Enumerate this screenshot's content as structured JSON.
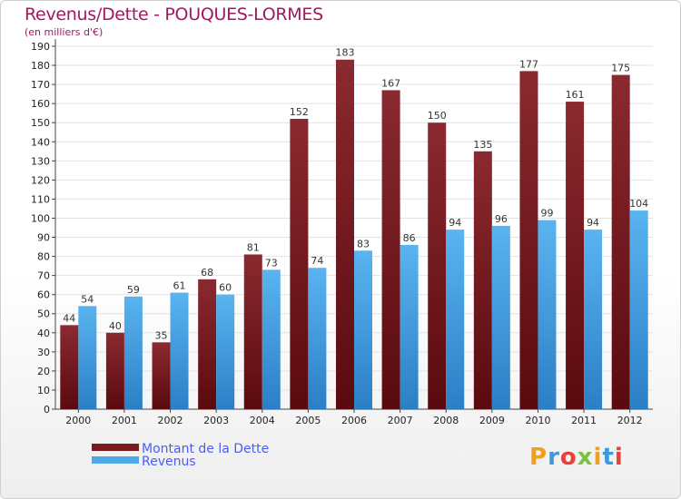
{
  "chart_data": {
    "type": "bar",
    "title": "Revenus/Dette - POUQUES-LORMES",
    "subtitle": "(en milliers d'€)",
    "categories": [
      "2000",
      "2001",
      "2002",
      "2003",
      "2004",
      "2005",
      "2006",
      "2007",
      "2008",
      "2009",
      "2010",
      "2011",
      "2012"
    ],
    "series": [
      {
        "name": "Montant de la Dette",
        "values": [
          44,
          40,
          35,
          68,
          81,
          152,
          183,
          167,
          150,
          135,
          177,
          161,
          175
        ],
        "color": "#7a1a1e"
      },
      {
        "name": "Revenus",
        "values": [
          54,
          59,
          61,
          60,
          73,
          74,
          83,
          86,
          94,
          96,
          99,
          94,
          104
        ],
        "color": "#4ea7e6"
      }
    ],
    "ylim": [
      0,
      190
    ],
    "yticks": [
      0,
      10,
      20,
      30,
      40,
      50,
      60,
      70,
      80,
      90,
      100,
      110,
      120,
      130,
      140,
      150,
      160,
      170,
      180,
      190
    ],
    "grid": true,
    "legend_position": "bottom-left"
  },
  "brand": {
    "logo_text": "Proxiti"
  },
  "colors": {
    "title": "#a01860",
    "legend_text": "#4a5ef0"
  }
}
